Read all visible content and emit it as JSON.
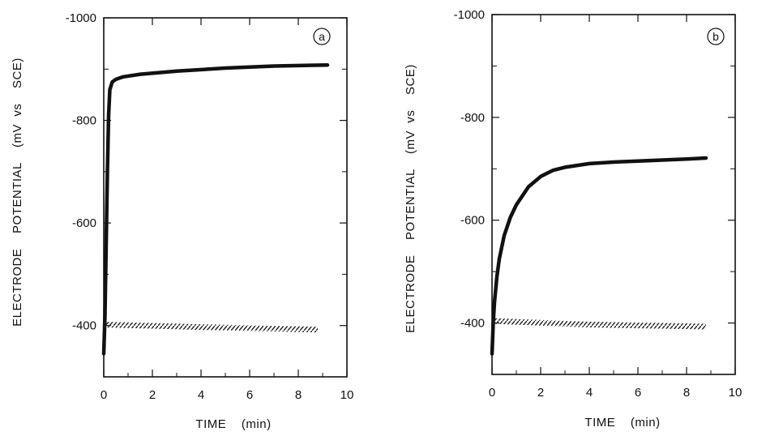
{
  "chart_data": [
    {
      "type": "line",
      "panel_label": "a",
      "xlabel": "TIME    (min)",
      "ylabel": "ELECTRODE    POTENTIAL    (mV  vs    SCE)",
      "xlim": [
        0,
        10
      ],
      "ylim": [
        -300,
        -1000
      ],
      "x_ticks": [
        0,
        2,
        4,
        6,
        8,
        10
      ],
      "x_tick_labels": [
        "0",
        "2",
        "4",
        "6",
        "8",
        "10"
      ],
      "y_ticks": [
        -400,
        -600,
        -800,
        -1000
      ],
      "y_tick_labels": [
        "-400",
        "-600",
        "-800",
        "-1000"
      ],
      "grid": false,
      "series": [
        {
          "style": "solid-thick",
          "x": [
            0.0,
            0.05,
            0.1,
            0.15,
            0.2,
            0.25,
            0.35,
            0.5,
            0.8,
            1.5,
            3,
            5,
            7,
            9.2
          ],
          "y": [
            -345,
            -420,
            -560,
            -700,
            -810,
            -860,
            -875,
            -880,
            -885,
            -890,
            -896,
            -902,
            -906,
            -908
          ]
        },
        {
          "style": "hatched",
          "x": [
            0,
            4,
            8.8
          ],
          "y": [
            -402,
            -397,
            -392
          ]
        }
      ]
    },
    {
      "type": "line",
      "panel_label": "b",
      "xlabel": "TIME    (min)",
      "ylabel": "ELECTRODE    POTENTIAL    (mV  vs    SCE)",
      "xlim": [
        0,
        10
      ],
      "ylim": [
        -300,
        -1000
      ],
      "x_ticks": [
        0,
        2,
        4,
        6,
        8,
        10
      ],
      "x_tick_labels": [
        "0",
        "2",
        "4",
        "6",
        "8",
        "10"
      ],
      "y_ticks": [
        -400,
        -600,
        -800,
        -1000
      ],
      "y_tick_labels": [
        "-400",
        "-600",
        "-800",
        "-1000"
      ],
      "grid": false,
      "series": [
        {
          "style": "solid-thick",
          "x": [
            0.0,
            0.05,
            0.1,
            0.2,
            0.3,
            0.5,
            0.75,
            1.0,
            1.5,
            2.0,
            2.5,
            3,
            4,
            5,
            6,
            7,
            8,
            8.8
          ],
          "y": [
            -340,
            -400,
            -440,
            -490,
            -525,
            -570,
            -605,
            -630,
            -665,
            -685,
            -697,
            -703,
            -710,
            -713,
            -715,
            -717,
            -719,
            -721
          ]
        },
        {
          "style": "hatched",
          "x": [
            0,
            4,
            8.8
          ],
          "y": [
            -404,
            -397,
            -393
          ]
        }
      ]
    }
  ]
}
